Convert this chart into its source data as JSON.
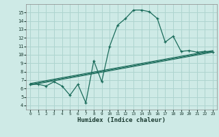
{
  "xlabel": "Humidex (Indice chaleur)",
  "bg_color": "#ceeae6",
  "grid_color": "#aed4cf",
  "line_color": "#1a6b5a",
  "xlim": [
    -0.5,
    23.5
  ],
  "ylim": [
    3.5,
    16.0
  ],
  "yticks": [
    4,
    5,
    6,
    7,
    8,
    9,
    10,
    11,
    12,
    13,
    14,
    15
  ],
  "xticks": [
    0,
    1,
    2,
    3,
    4,
    5,
    6,
    7,
    8,
    9,
    10,
    11,
    12,
    13,
    14,
    15,
    16,
    17,
    18,
    19,
    20,
    21,
    22,
    23
  ],
  "series1_x": [
    0,
    1,
    2,
    3,
    4,
    5,
    6,
    7,
    8,
    9,
    10,
    11,
    12,
    13,
    14,
    15,
    16,
    17,
    18,
    19,
    20,
    21,
    22,
    23
  ],
  "series1_y": [
    6.5,
    6.5,
    6.3,
    6.8,
    6.3,
    5.2,
    6.5,
    4.3,
    9.3,
    6.8,
    11.0,
    13.5,
    14.3,
    15.3,
    15.3,
    15.1,
    14.3,
    11.5,
    12.2,
    10.4,
    10.5,
    10.3,
    10.4,
    10.3
  ],
  "series2_x": [
    0,
    23
  ],
  "series2_y": [
    6.4,
    10.3
  ],
  "series3_x": [
    0,
    23
  ],
  "series3_y": [
    6.5,
    10.4
  ],
  "series4_x": [
    0,
    23
  ],
  "series4_y": [
    6.6,
    10.5
  ]
}
